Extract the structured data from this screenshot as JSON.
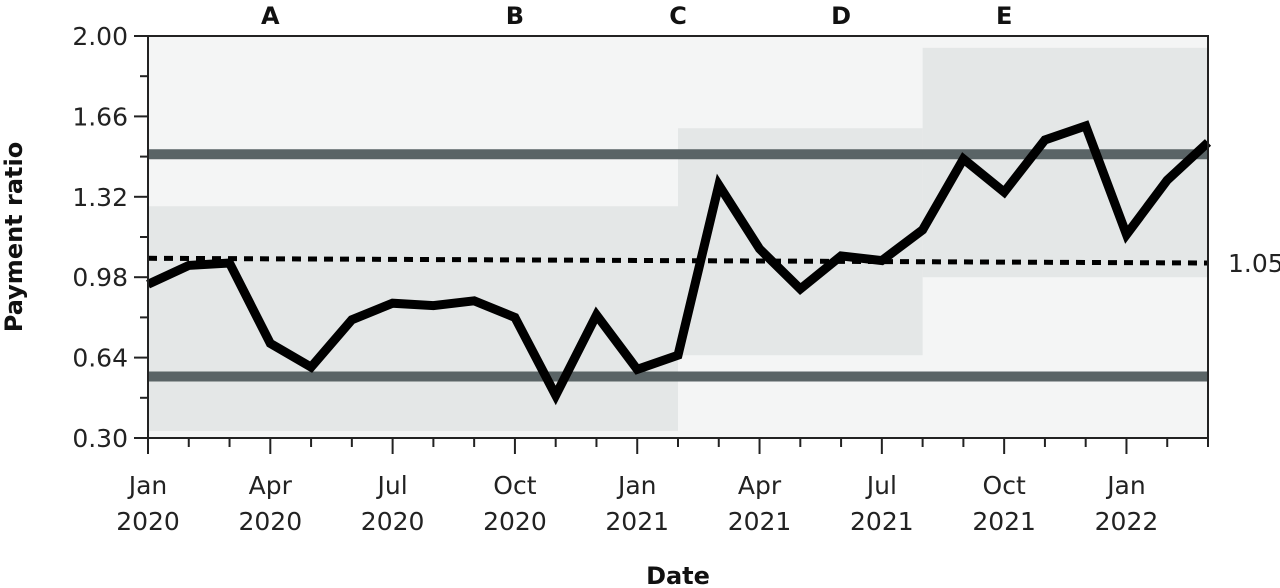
{
  "chart_data": {
    "type": "line",
    "xlabel": "Date",
    "ylabel": "Payment ratio",
    "ylim": [
      0.3,
      2.0
    ],
    "y_ticks": [
      "0.30",
      "0.64",
      "0.98",
      "1.32",
      "1.66",
      "2.00"
    ],
    "x_range": [
      "2020-01",
      "2022-03"
    ],
    "x_ticks": [
      {
        "date": "2020-01",
        "line1": "Jan",
        "line2": "2020"
      },
      {
        "date": "2020-04",
        "line1": "Apr",
        "line2": "2020"
      },
      {
        "date": "2020-07",
        "line1": "Jul",
        "line2": "2020"
      },
      {
        "date": "2020-10",
        "line1": "Oct",
        "line2": "2020"
      },
      {
        "date": "2021-01",
        "line1": "Jan",
        "line2": "2021"
      },
      {
        "date": "2021-04",
        "line1": "Apr",
        "line2": "2021"
      },
      {
        "date": "2021-07",
        "line1": "Jul",
        "line2": "2021"
      },
      {
        "date": "2021-10",
        "line1": "Oct",
        "line2": "2021"
      },
      {
        "date": "2022-01",
        "line1": "Jan",
        "line2": "2022"
      }
    ],
    "phases": [
      "A",
      "B",
      "C",
      "D",
      "E"
    ],
    "phase_label_dates": [
      "2020-04",
      "2020-10",
      "2021-02",
      "2021-06",
      "2021-10"
    ],
    "control_limits": [
      {
        "from": "2020-01",
        "to": "2021-02",
        "ucl": 1.5,
        "lcl": 0.56
      },
      {
        "from": "2021-02",
        "to": "2022-03",
        "ucl": 1.5,
        "lcl": 0.56
      }
    ],
    "bands": [
      {
        "from": "2020-01",
        "to": "2021-02",
        "upper": 1.28,
        "lower": 0.33
      },
      {
        "from": "2021-02",
        "to": "2021-08",
        "upper": 1.61,
        "lower": 0.65
      },
      {
        "from": "2021-08",
        "to": "2022-03",
        "upper": 1.95,
        "lower": 0.98
      }
    ],
    "centerline": {
      "start_value": 1.06,
      "end_value": 1.04,
      "label": "1.05"
    },
    "series": [
      {
        "x": [
          "2020-01",
          "2020-02",
          "2020-03",
          "2020-04",
          "2020-05",
          "2020-06",
          "2020-07",
          "2020-08",
          "2020-09",
          "2020-10",
          "2020-11",
          "2020-12",
          "2021-01",
          "2021-02",
          "2021-03",
          "2021-04",
          "2021-05",
          "2021-06",
          "2021-07",
          "2021-08",
          "2021-09",
          "2021-10",
          "2021-11",
          "2021-12",
          "2022-01",
          "2022-02",
          "2022-03"
        ],
        "values": [
          0.95,
          1.03,
          1.04,
          0.7,
          0.6,
          0.8,
          0.87,
          0.86,
          0.88,
          0.81,
          0.48,
          0.82,
          0.59,
          0.65,
          1.37,
          1.1,
          0.93,
          1.07,
          1.05,
          1.18,
          1.48,
          1.34,
          1.56,
          1.62,
          1.16,
          1.39,
          1.55
        ]
      }
    ],
    "colors": {
      "line": "#000000",
      "limit": "#5a6466",
      "band": "#e4e7e7",
      "background": "#f4f5f5"
    }
  }
}
